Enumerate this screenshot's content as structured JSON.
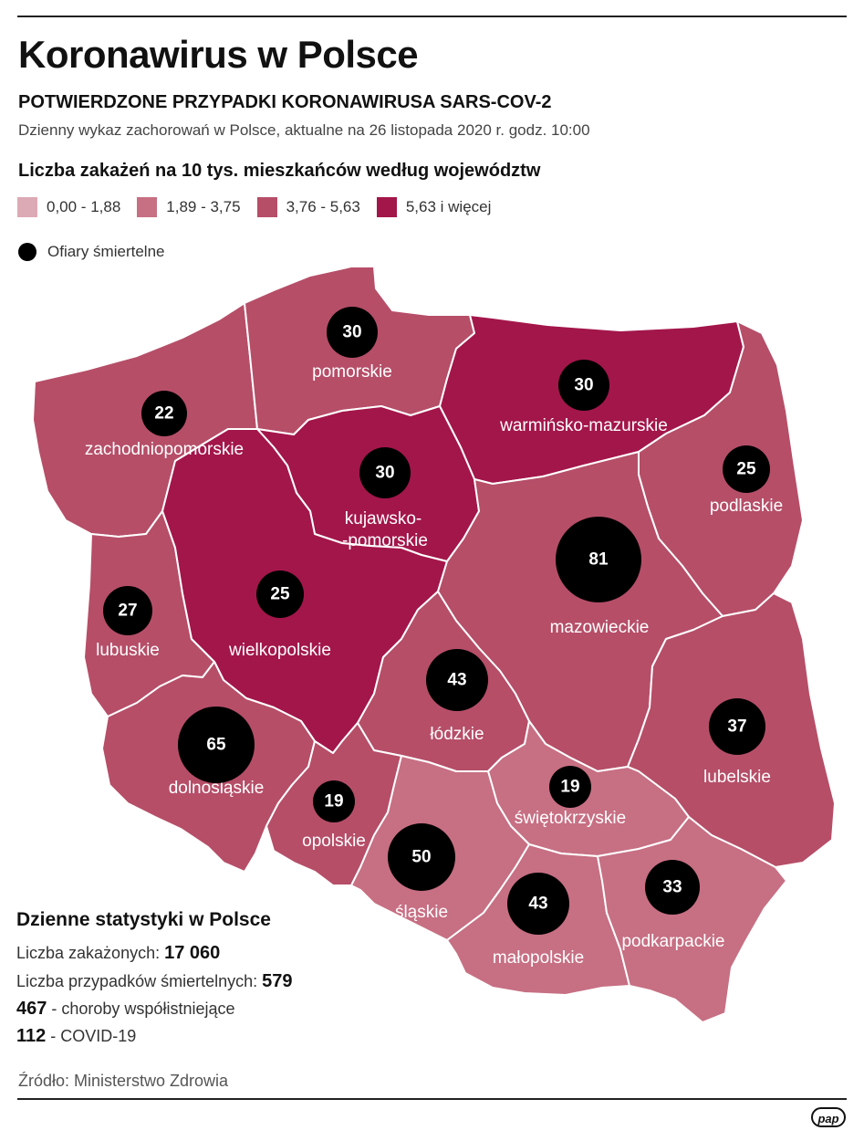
{
  "header": {
    "title": "Koronawirus w Polsce",
    "subtitle": "POTWIERDZONE PRZYPADKI KORONAWIRUSA SARS-COV-2",
    "description": "Dzienny wykaz zachorowań w Polsce, aktualne na 26 listopada 2020 r. godz. 10:00"
  },
  "legend": {
    "title": "Liczba zakażeń na 10 tys. mieszkańców według województw",
    "items": [
      {
        "label": "0,00 - 1,88",
        "color": "#dcaab5"
      },
      {
        "label": "1,89 - 3,75",
        "color": "#c76f83"
      },
      {
        "label": "3,76 - 5,63",
        "color": "#b64e68"
      },
      {
        "label": "5,63 i więcej",
        "color": "#a3164a"
      }
    ],
    "deaths_label": "Ofiary śmiertelne"
  },
  "regions": [
    {
      "name": "zachodniopomorskie",
      "deaths": "22",
      "fill": "#b64e68"
    },
    {
      "name": "pomorskie",
      "deaths": "30",
      "fill": "#b64e68"
    },
    {
      "name": "warmińsko-mazurskie",
      "deaths": "30",
      "fill": "#a3164a"
    },
    {
      "name": "podlaskie",
      "deaths": "25",
      "fill": "#b64e68"
    },
    {
      "name": "kujawsko-",
      "name_line2": "-pomorskie",
      "deaths": "30",
      "fill": "#a3164a"
    },
    {
      "name": "lubuskie",
      "deaths": "27",
      "fill": "#b64e68"
    },
    {
      "name": "wielkopolskie",
      "deaths": "25",
      "fill": "#a3164a"
    },
    {
      "name": "mazowieckie",
      "deaths": "81",
      "fill": "#b64e68"
    },
    {
      "name": "łódzkie",
      "deaths": "43",
      "fill": "#b64e68"
    },
    {
      "name": "lubelskie",
      "deaths": "37",
      "fill": "#b64e68"
    },
    {
      "name": "dolnośląskie",
      "deaths": "65",
      "fill": "#b64e68"
    },
    {
      "name": "opolskie",
      "deaths": "19",
      "fill": "#b64e68"
    },
    {
      "name": "świętokrzyskie",
      "deaths": "19",
      "fill": "#c76f83"
    },
    {
      "name": "śląskie",
      "deaths": "50",
      "fill": "#c76f83"
    },
    {
      "name": "małopolskie",
      "deaths": "43",
      "fill": "#c76f83"
    },
    {
      "name": "podkarpackie",
      "deaths": "33",
      "fill": "#c76f83"
    }
  ],
  "stats": {
    "title": "Dzienne statystyki w Polsce",
    "infections_label": "Liczba zakażonych:",
    "infections_value": "17 060",
    "deaths_label": "Liczba przypadków śmiertelnych:",
    "deaths_value": "579",
    "comorbid_value": "467",
    "comorbid_label": "- choroby współistniejące",
    "covid_value": "112",
    "covid_label": "- COVID-19"
  },
  "source": "Źródło: Ministerstwo Zdrowia",
  "logo": "pap"
}
